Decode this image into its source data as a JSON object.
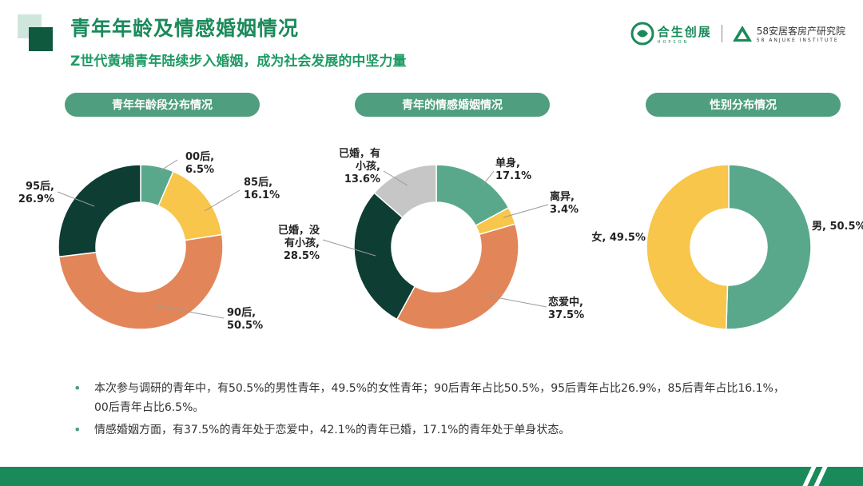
{
  "header": {
    "title": "青年年龄及情感婚姻情况",
    "subtitle": "Z世代黄埔青年陆续步入婚姻，成为社会发展的中坚力量"
  },
  "logos": {
    "logo1_main": "合生创展",
    "logo1_sub": "HOPSON",
    "logo2_main": "58安居客房产研究院",
    "logo2_sub": "58 ANJUKE INSTITUTE"
  },
  "colors": {
    "teal": "#5aa88b",
    "yellow": "#f7c64a",
    "orange": "#e2865a",
    "dark_green": "#0e3d33",
    "grey": "#c6c6c6",
    "brand_green": "#1a8a5a"
  },
  "chart_data": [
    {
      "type": "pie",
      "title": "青年年龄段分布情况",
      "donut": true,
      "slices": [
        {
          "name": "00后",
          "value": 6.5,
          "label_lines": [
            "00后,",
            "6.5%"
          ],
          "color": "#5aa88b"
        },
        {
          "name": "85后",
          "value": 16.1,
          "label_lines": [
            "85后,",
            "16.1%"
          ],
          "color": "#f7c64a"
        },
        {
          "name": "90后",
          "value": 50.5,
          "label_lines": [
            "90后,",
            "50.5%"
          ],
          "color": "#e2865a"
        },
        {
          "name": "95后",
          "value": 26.9,
          "label_lines": [
            "95后,",
            "26.9%"
          ],
          "color": "#0e3d33"
        }
      ]
    },
    {
      "type": "pie",
      "title": "青年的情感婚姻情况",
      "donut": true,
      "slices": [
        {
          "name": "单身",
          "value": 17.1,
          "label_lines": [
            "单身,",
            "17.1%"
          ],
          "color": "#5aa88b"
        },
        {
          "name": "离异",
          "value": 3.4,
          "label_lines": [
            "离异,",
            "3.4%"
          ],
          "color": "#f7c64a"
        },
        {
          "name": "恋爱中",
          "value": 37.5,
          "label_lines": [
            "恋爱中,",
            "37.5%"
          ],
          "color": "#e2865a"
        },
        {
          "name": "已婚，没有小孩",
          "value": 28.5,
          "label_lines": [
            "已婚，没",
            "有小孩,",
            "28.5%"
          ],
          "color": "#0e3d33"
        },
        {
          "name": "已婚，有小孩",
          "value": 13.6,
          "label_lines": [
            "已婚，有",
            "小孩,",
            "13.6%"
          ],
          "color": "#c6c6c6"
        }
      ]
    },
    {
      "type": "pie",
      "title": "性别分布情况",
      "donut": true,
      "slices": [
        {
          "name": "男",
          "value": 50.5,
          "label_lines": [
            "男, 50.5%"
          ],
          "color": "#5aa88b"
        },
        {
          "name": "女",
          "value": 49.5,
          "label_lines": [
            "女, 49.5%"
          ],
          "color": "#f7c64a"
        }
      ]
    }
  ],
  "notes": [
    "本次参与调研的青年中，有50.5%的男性青年，49.5%的女性青年；90后青年占比50.5%，95后青年占比26.9%，85后青年占比16.1%，00后青年占比6.5%。",
    "情感婚姻方面，有37.5%的青年处于恋爱中，42.1%的青年已婚，17.1%的青年处于单身状态。"
  ],
  "bullet_symbol": "•"
}
